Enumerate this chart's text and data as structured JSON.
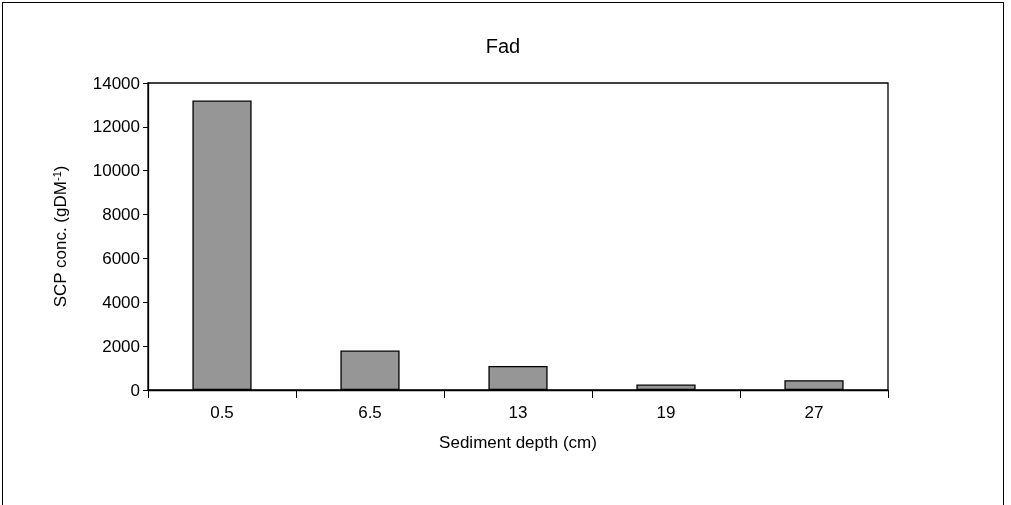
{
  "chart_data": {
    "type": "bar",
    "title": "Fad",
    "xlabel": "Sediment depth (cm)",
    "ylabel": "SCP conc. (gDM$^{-1}$)",
    "categories": [
      "0.5",
      "6.5",
      "13",
      "19",
      "27"
    ],
    "values": [
      13200,
      1800,
      1100,
      250,
      450
    ],
    "color": "#969696",
    "ylim": [
      0,
      14000
    ],
    "yticks": [
      0,
      2000,
      4000,
      6000,
      8000,
      10000,
      12000,
      14000
    ],
    "grid": false
  }
}
